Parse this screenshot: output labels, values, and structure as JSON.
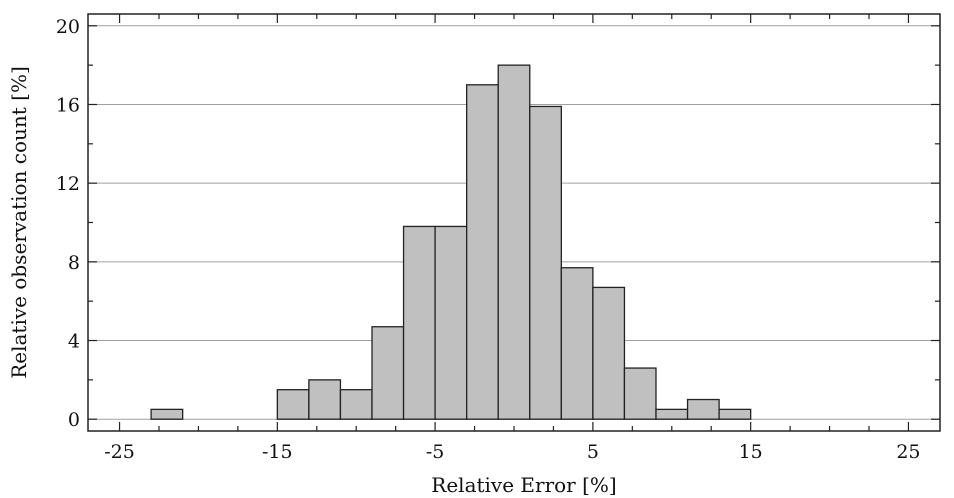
{
  "chart_data": {
    "type": "bar",
    "title": "",
    "xlabel": "Relative Error [%]",
    "ylabel": "Relative observation count [%]",
    "xlim": [
      -27,
      27
    ],
    "ylim": [
      -0.6,
      20.6
    ],
    "bin_width": 2,
    "xticks": [
      -25,
      -15,
      -5,
      5,
      15,
      25
    ],
    "yticks": [
      0,
      4,
      8,
      12,
      16,
      20
    ],
    "grid": {
      "horizontal": true,
      "vertical": false
    },
    "bar_color": "#c0c0c0",
    "edge_color": "#222222",
    "grid_color": "#a0a0a0",
    "bins": [
      {
        "x": -22,
        "value": 0.5
      },
      {
        "x": -14,
        "value": 1.5
      },
      {
        "x": -12,
        "value": 2.0
      },
      {
        "x": -10,
        "value": 1.5
      },
      {
        "x": -8,
        "value": 4.7
      },
      {
        "x": -6,
        "value": 9.8
      },
      {
        "x": -4,
        "value": 9.8
      },
      {
        "x": -2,
        "value": 17.0
      },
      {
        "x": 0,
        "value": 18.0
      },
      {
        "x": 2,
        "value": 15.9
      },
      {
        "x": 4,
        "value": 7.7
      },
      {
        "x": 6,
        "value": 6.7
      },
      {
        "x": 8,
        "value": 2.6
      },
      {
        "x": 10,
        "value": 0.5
      },
      {
        "x": 12,
        "value": 1.0
      },
      {
        "x": 14,
        "value": 0.5
      }
    ]
  }
}
